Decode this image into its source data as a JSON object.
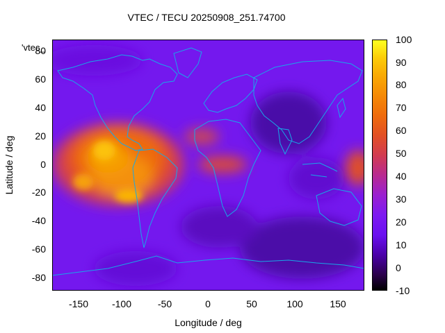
{
  "title": "VTEC / TECU 20250908_251.74700",
  "key_label": "'vtec_",
  "x_axis": {
    "label": "Longitude / deg",
    "ticks": [
      "-150",
      "-100",
      "-50",
      "0",
      "50",
      "100",
      "150"
    ],
    "range": [
      -180,
      180
    ]
  },
  "y_axis": {
    "label": "Latitude / deg",
    "ticks": [
      "80",
      "60",
      "40",
      "20",
      "0",
      "-20",
      "-40",
      "-60",
      "-80"
    ],
    "range": [
      -90,
      90
    ]
  },
  "colorbar": {
    "ticks": [
      "100",
      "90",
      "80",
      "70",
      "60",
      "50",
      "40",
      "30",
      "20",
      "10",
      "0",
      "-10"
    ],
    "range": [
      -10,
      100
    ]
  },
  "colors": {
    "background": "#7a18f0",
    "coastline": "#18a8e8"
  }
}
